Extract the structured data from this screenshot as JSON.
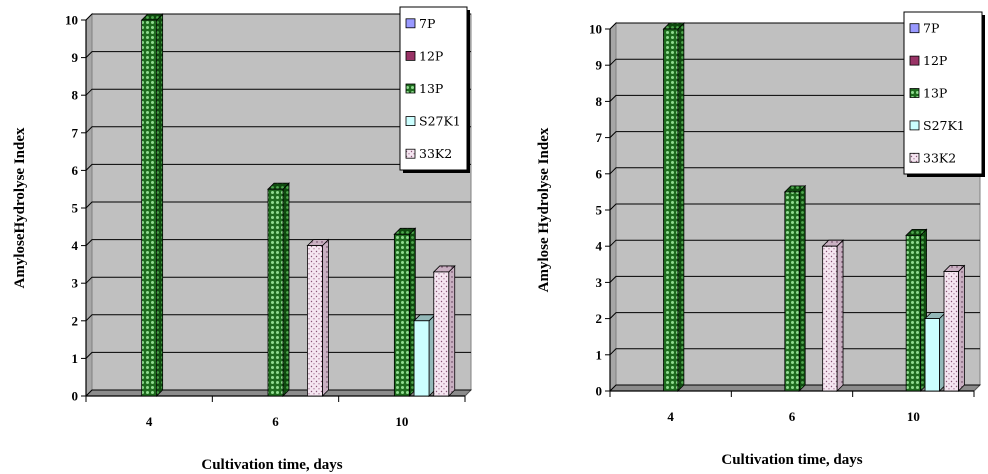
{
  "chart_data": [
    {
      "type": "bar",
      "title": "",
      "xlabel": "Cultivation time, days",
      "ylabel": "AmyloseHydrolyse Index",
      "categories": [
        "4",
        "6",
        "10"
      ],
      "ylim": [
        0,
        10
      ],
      "yticks": [
        "0",
        "1",
        "2",
        "3",
        "4",
        "5",
        "6",
        "7",
        "8",
        "9",
        "10"
      ],
      "grid": true,
      "legend_position": "top-right",
      "series": [
        {
          "name": "7P",
          "values": [
            0,
            0,
            0
          ],
          "color": "#9999ff"
        },
        {
          "name": "12P",
          "values": [
            0,
            0,
            0
          ],
          "color": "#993366"
        },
        {
          "name": "13P",
          "values": [
            10,
            5.5,
            4.3
          ],
          "color": "#1f7a1f"
        },
        {
          "name": "S27K1",
          "values": [
            0,
            0,
            2
          ],
          "color": "#ccffff"
        },
        {
          "name": "33K2",
          "values": [
            0,
            4,
            3.3
          ],
          "color": "#f3e0ee"
        }
      ]
    },
    {
      "type": "bar",
      "title": "",
      "xlabel": "Cultivation time, days",
      "ylabel": "Amylose Hydrolyse Index",
      "categories": [
        "4",
        "6",
        "10"
      ],
      "ylim": [
        0,
        10
      ],
      "yticks": [
        "0",
        "1",
        "2",
        "3",
        "4",
        "5",
        "6",
        "7",
        "8",
        "9",
        "10"
      ],
      "grid": true,
      "legend_position": "top-right",
      "series": [
        {
          "name": "7P",
          "values": [
            0,
            0,
            0
          ],
          "color": "#9999ff"
        },
        {
          "name": "12P",
          "values": [
            0,
            0,
            0
          ],
          "color": "#993366"
        },
        {
          "name": "13P",
          "values": [
            10,
            5.5,
            4.3
          ],
          "color": "#1f7a1f"
        },
        {
          "name": "S27K1",
          "values": [
            0,
            0,
            2
          ],
          "color": "#ccffff"
        },
        {
          "name": "33K2",
          "values": [
            0,
            4,
            3.3
          ],
          "color": "#f3e0ee"
        }
      ]
    }
  ]
}
